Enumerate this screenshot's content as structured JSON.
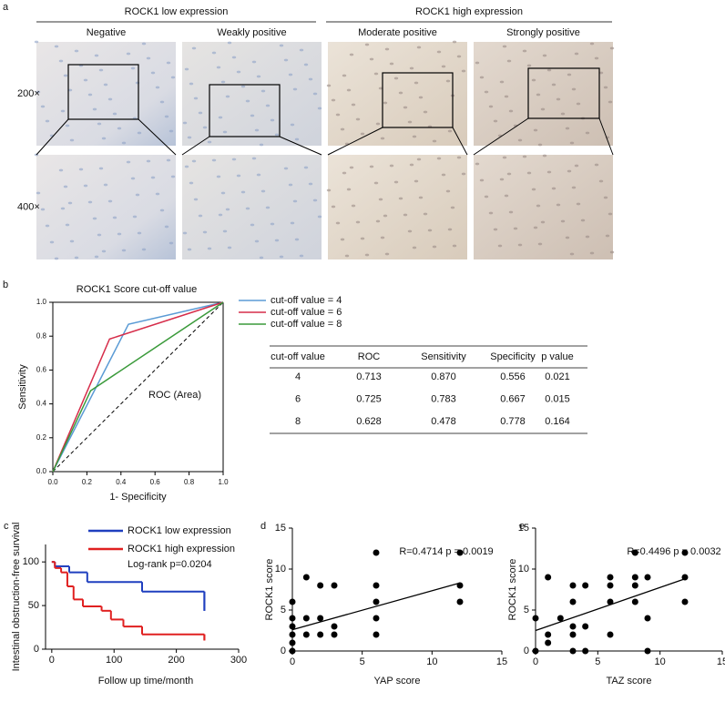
{
  "panel_a": {
    "label": "a",
    "groups": [
      "ROCK1 low expression",
      "ROCK1 high expression"
    ],
    "columns": [
      "Negative",
      "Weakly positive",
      "Moderate positive",
      "Strongly positive"
    ],
    "rows": [
      "200×",
      "400×"
    ]
  },
  "table": {
    "header": [
      "cut-off value",
      "ROC",
      "Sensitivity",
      "Specificity",
      "p value"
    ],
    "rows": [
      [
        "4",
        "0.713",
        "0.870",
        "0.556",
        "0.021"
      ],
      [
        "6",
        "0.725",
        "0.783",
        "0.667",
        "0.015"
      ],
      [
        "8",
        "0.628",
        "0.478",
        "0.778",
        "0.164"
      ]
    ]
  },
  "chart_data": [
    {
      "type": "line",
      "panel_label": "b",
      "title": "ROCK1 Score cut-off value",
      "x_label": "1- Specificity",
      "y_label": "Sensitivity",
      "annotation": "ROC (Area)",
      "xlim": [
        0,
        1
      ],
      "ylim": [
        0,
        1
      ],
      "xticks": [
        {
          "value": 0,
          "label": "0.0"
        },
        0.2,
        0.4,
        0.6,
        0.8,
        {
          "value": 1,
          "label": "1.0"
        }
      ],
      "yticks": [
        {
          "value": 0,
          "label": "0.0"
        },
        0.2,
        0.4,
        0.6,
        0.8,
        {
          "value": 1,
          "label": "1.0"
        }
      ],
      "reference_line": {
        "x": [
          0,
          1
        ],
        "values": [
          0,
          1
        ]
      },
      "series": [
        {
          "name": "cut-off value = 4",
          "color": "#5b9bd5",
          "x": [
            0,
            0.444,
            1
          ],
          "values": [
            0,
            0.87,
            1
          ]
        },
        {
          "name": "cut-off value = 6",
          "color": "#d62d4a",
          "x": [
            0,
            0.333,
            1
          ],
          "values": [
            0,
            0.783,
            1
          ]
        },
        {
          "name": "cut-off value = 8",
          "color": "#3a9a3a",
          "x": [
            0,
            0.222,
            1
          ],
          "values": [
            0,
            0.478,
            1
          ]
        }
      ]
    },
    {
      "type": "step",
      "panel_label": "c",
      "x_label": "Follow up time/month",
      "y_label": "Intestinal obstruction-free survival",
      "annotation": "Log-rank p=0.0204",
      "xlim": [
        -10,
        300
      ],
      "ylim": [
        0,
        120
      ],
      "xticks": [
        0,
        100,
        200,
        300
      ],
      "yticks": [
        0,
        50,
        100
      ],
      "series": [
        {
          "name": "ROCK1 low expression",
          "color": "#1f3fbf",
          "x": [
            0,
            5,
            28,
            57,
            145,
            245
          ],
          "values": [
            100,
            95,
            88,
            77,
            66,
            44
          ]
        },
        {
          "name": "ROCK1 high expression",
          "color": "#e02020",
          "x": [
            0,
            5,
            15,
            25,
            35,
            50,
            80,
            95,
            115,
            145,
            245
          ],
          "values": [
            100,
            93,
            88,
            72,
            57,
            49,
            44,
            34,
            26,
            17,
            10
          ]
        }
      ]
    },
    {
      "type": "scatter",
      "panel_label": "d",
      "x_label": "YAP score",
      "y_label": "ROCK1 score",
      "annotation": "R=0.4714  p = 0.0019",
      "xlim": [
        0,
        15
      ],
      "ylim": [
        0,
        15
      ],
      "xticks": [
        0,
        5,
        10,
        15
      ],
      "yticks": [
        0,
        5,
        10,
        15
      ],
      "color": "#000000",
      "x": [
        0,
        0,
        0,
        0,
        0,
        0,
        1,
        1,
        1,
        2,
        2,
        2,
        3,
        3,
        3,
        6,
        6,
        6,
        6,
        6,
        12,
        12,
        12
      ],
      "values": [
        0,
        1,
        2,
        3,
        4,
        6,
        2,
        4,
        9,
        2,
        4,
        8,
        2,
        3,
        8,
        2,
        4,
        6,
        8,
        12,
        6,
        8,
        12
      ],
      "fit_line": {
        "x": [
          0,
          12
        ],
        "values": [
          2.6,
          8.3
        ]
      }
    },
    {
      "type": "scatter",
      "panel_label": "e",
      "x_label": "TAZ score",
      "y_label": "ROCK1 score",
      "annotation": "R=0.4496  p = 0.0032",
      "xlim": [
        0,
        15
      ],
      "ylim": [
        0,
        15
      ],
      "xticks": [
        0,
        5,
        10,
        15
      ],
      "yticks": [
        0,
        5,
        10,
        15
      ],
      "color": "#000000",
      "x": [
        0,
        0,
        1,
        1,
        1,
        2,
        3,
        3,
        3,
        3,
        3,
        4,
        4,
        4,
        6,
        6,
        6,
        6,
        8,
        8,
        8,
        8,
        9,
        9,
        9,
        12,
        12,
        12
      ],
      "values": [
        4,
        0,
        1,
        2,
        9,
        4,
        0,
        2,
        3,
        6,
        8,
        0,
        3,
        8,
        2,
        6,
        8,
        9,
        6,
        8,
        9,
        12,
        0,
        4,
        9,
        6,
        9,
        12
      ],
      "fit_line": {
        "x": [
          0,
          12
        ],
        "values": [
          2.5,
          8.8
        ]
      }
    }
  ]
}
